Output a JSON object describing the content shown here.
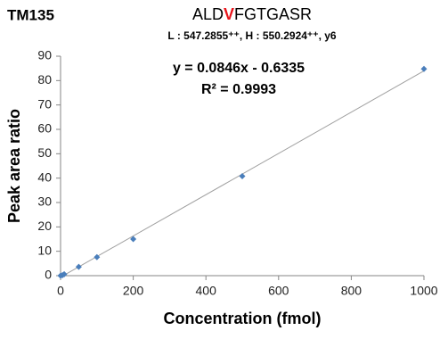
{
  "chart_data": {
    "type": "scatter",
    "tag": "TM135",
    "title_parts": [
      {
        "text": "ALD",
        "color": "#000000"
      },
      {
        "text": "V",
        "color": "#e8151b"
      },
      {
        "text": "FGTGASR",
        "color": "#000000"
      }
    ],
    "subtitle": "L : 547.2855⁺⁺, H : 550.2924⁺⁺, y6",
    "x_label": "Concentration (fmol)",
    "y_label": "Peak area ratio",
    "x": [
      0,
      5,
      10,
      50,
      100,
      200,
      500,
      1000
    ],
    "values": [
      0,
      0.2,
      0.6,
      3.6,
      7.6,
      15,
      40.8,
      84.8
    ],
    "color": "#4a7ebb",
    "trendline": {
      "slope": 0.0846,
      "intercept": -0.6335,
      "color": "#a0a0a0",
      "equation": "y = 0.0846x - 0.6335",
      "r2": "R² = 0.9993"
    },
    "xlim": [
      0,
      1000
    ],
    "xticks": [
      0,
      200,
      400,
      600,
      800,
      1000
    ],
    "ylim": [
      0,
      90
    ],
    "yticks": [
      0,
      10,
      20,
      30,
      40,
      50,
      60,
      70,
      80,
      90
    ],
    "grid": false
  }
}
